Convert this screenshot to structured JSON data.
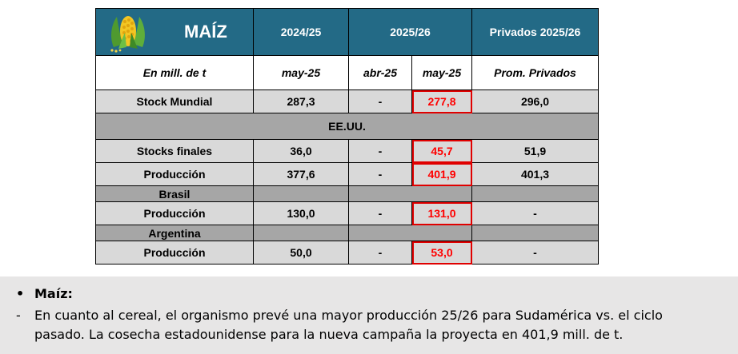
{
  "table": {
    "header": {
      "title": "MAÍZ",
      "col1": "2024/25",
      "col2": "2025/26",
      "col3": "Privados 2025/26"
    },
    "subheader": {
      "unit": "En mill. de t",
      "c1": "may-25",
      "c2": "abr-25",
      "c3": "may-25",
      "c4": "Prom. Privados"
    },
    "rows": {
      "stock_mundial": {
        "label": "Stock Mundial",
        "v1": "287,3",
        "v2": "-",
        "v3": "277,8",
        "v4": "296,0"
      },
      "eeuu": {
        "label": "EE.UU."
      },
      "stocks_finales": {
        "label": "Stocks finales",
        "v1": "36,0",
        "v2": "-",
        "v3": "45,7",
        "v4": "51,9"
      },
      "produccion_eeuu": {
        "label": "Producción",
        "v1": "377,6",
        "v2": "-",
        "v3": "401,9",
        "v4": "401,3"
      },
      "brasil": {
        "label": "Brasil"
      },
      "produccion_brasil": {
        "label": "Producción",
        "v1": "130,0",
        "v2": "-",
        "v3": "131,0",
        "v4": "-"
      },
      "argentina": {
        "label": "Argentina"
      },
      "produccion_argentina": {
        "label": "Producción",
        "v1": "50,0",
        "v2": "-",
        "v3": "53,0",
        "v4": "-"
      }
    },
    "colors": {
      "header_bg": "#236A86",
      "row_bg": "#D9D9D9",
      "section_bg": "#A6A6A6",
      "highlight": "#FF0000"
    }
  },
  "note": {
    "bullet": "•",
    "dash": "-",
    "title": "Maíz:",
    "line1": "En cuanto al cereal, el organismo prevé una mayor producción 25/26 para Sudamérica vs. el ciclo",
    "line2": "pasado. La cosecha estadounidense para la nueva campaña la proyecta en 401,9 mill. de t.",
    "bg": "#E7E6E6"
  }
}
